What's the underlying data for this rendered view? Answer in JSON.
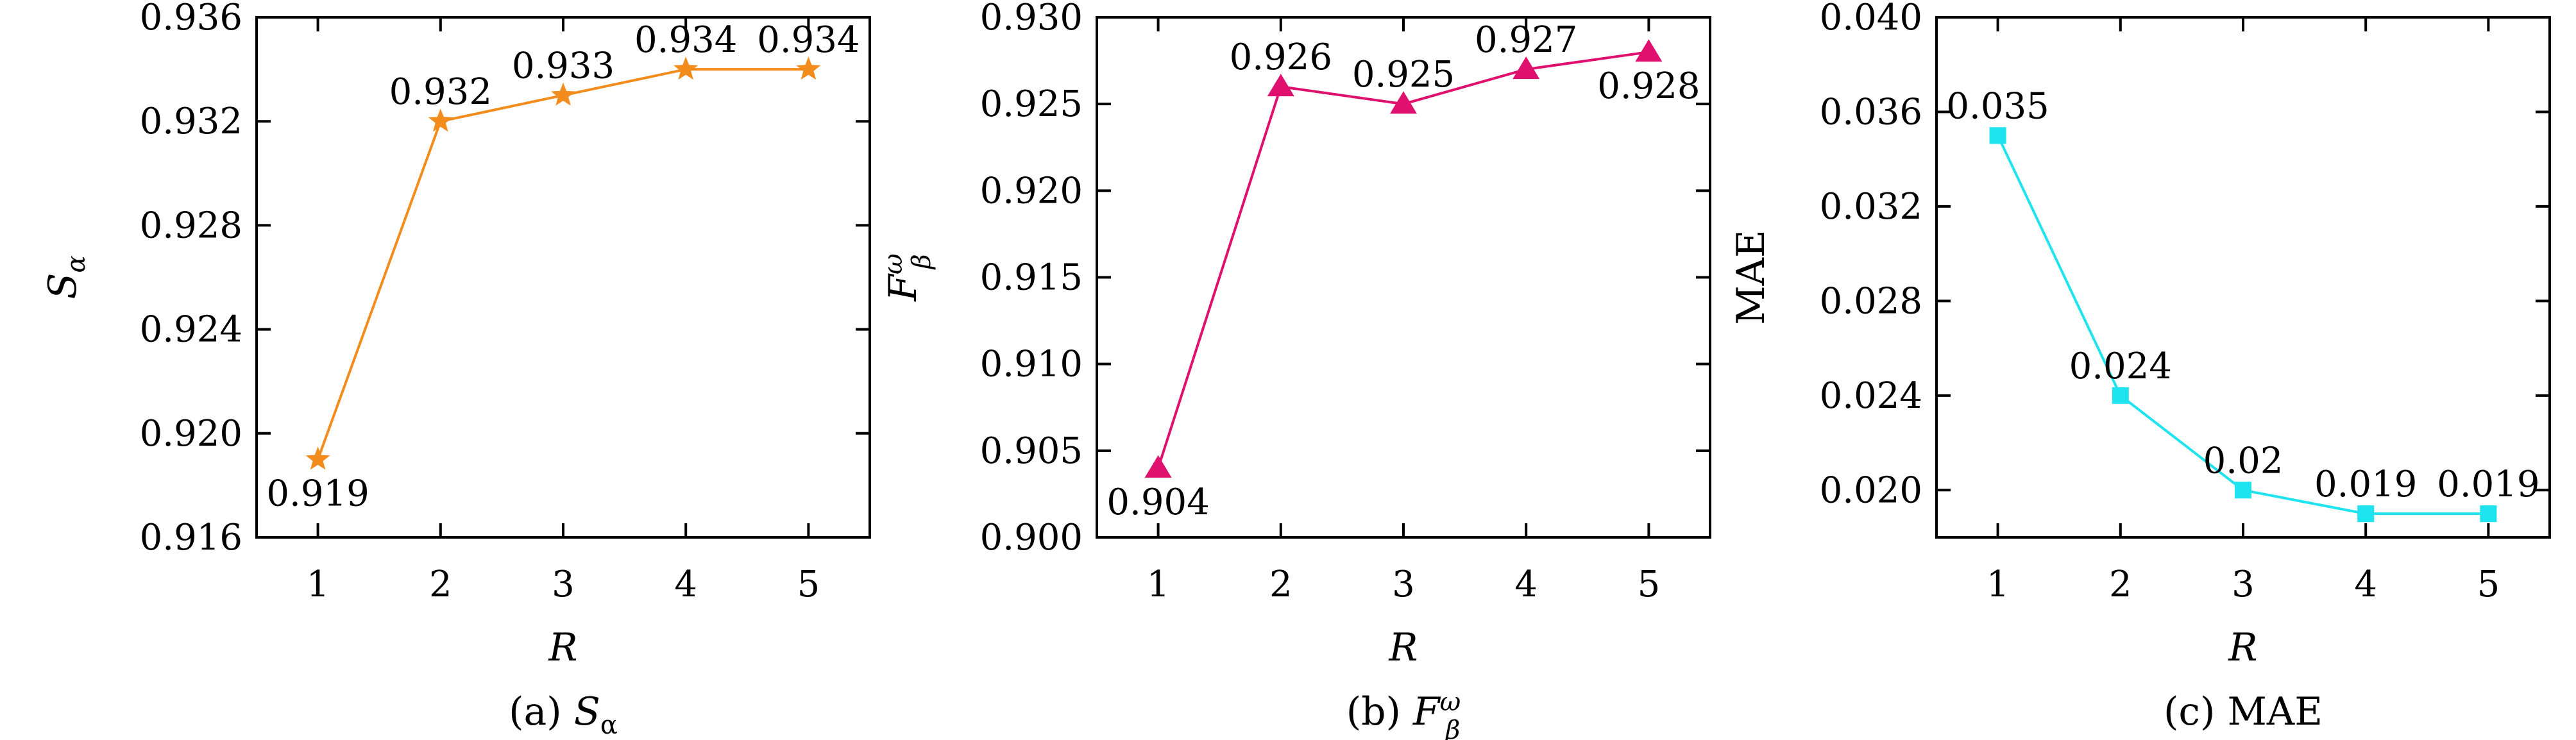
{
  "chart_data": [
    {
      "type": "line",
      "panel": "a",
      "caption": "(a) Sα",
      "caption_parts": {
        "prefix": "(a) ",
        "symbol": "S",
        "sub": "α",
        "sup": ""
      },
      "xlabel": "R",
      "ylabel": "Sα",
      "ylabel_parts": {
        "symbol": "S",
        "sub": "α",
        "sup": ""
      },
      "x": [
        1,
        2,
        3,
        4,
        5
      ],
      "series": [
        {
          "values": [
            0.919,
            0.932,
            0.933,
            0.934,
            0.934
          ],
          "marker": "star",
          "color": "#f28c1c"
        }
      ],
      "data_labels": [
        "0.919",
        "0.932",
        "0.933",
        "0.934",
        "0.934"
      ],
      "data_label_positions": [
        "below",
        "above",
        "above",
        "above",
        "above"
      ],
      "xlim": [
        0.5,
        5.5
      ],
      "ylim": [
        0.916,
        0.936
      ],
      "yticks": [
        0.916,
        0.92,
        0.924,
        0.928,
        0.932,
        0.936
      ],
      "ytick_labels": [
        "0.916",
        "0.920",
        "0.924",
        "0.928",
        "0.932",
        "0.936"
      ],
      "xtick_labels": [
        "1",
        "2",
        "3",
        "4",
        "5"
      ],
      "grid": false
    },
    {
      "type": "line",
      "panel": "b",
      "caption": "(b) Fβω",
      "caption_parts": {
        "prefix": "(b) ",
        "symbol": "F",
        "sub": "β",
        "sup": "ω"
      },
      "xlabel": "R",
      "ylabel": "Fβω",
      "ylabel_parts": {
        "symbol": "F",
        "sub": "β",
        "sup": "ω"
      },
      "x": [
        1,
        2,
        3,
        4,
        5
      ],
      "series": [
        {
          "values": [
            0.904,
            0.926,
            0.925,
            0.927,
            0.928
          ],
          "marker": "triangle",
          "color": "#e0106e"
        }
      ],
      "data_labels": [
        "0.904",
        "0.926",
        "0.925",
        "0.927",
        "0.928"
      ],
      "data_label_positions": [
        "below",
        "above",
        "above",
        "above",
        "below"
      ],
      "xlim": [
        0.5,
        5.5
      ],
      "ylim": [
        0.9,
        0.93
      ],
      "yticks": [
        0.9,
        0.905,
        0.91,
        0.915,
        0.92,
        0.925,
        0.93
      ],
      "ytick_labels": [
        "0.900",
        "0.905",
        "0.910",
        "0.915",
        "0.920",
        "0.925",
        "0.930"
      ],
      "xtick_labels": [
        "1",
        "2",
        "3",
        "4",
        "5"
      ],
      "grid": false
    },
    {
      "type": "line",
      "panel": "c",
      "caption": "(c) MAE",
      "caption_parts": {
        "prefix": "(c) ",
        "symbol": "MAE",
        "sub": "",
        "sup": ""
      },
      "xlabel": "R",
      "ylabel": "MAE",
      "ylabel_parts": {
        "symbol": "MAE",
        "sub": "",
        "sup": ""
      },
      "x": [
        1,
        2,
        3,
        4,
        5
      ],
      "series": [
        {
          "values": [
            0.035,
            0.024,
            0.02,
            0.019,
            0.019
          ],
          "marker": "square",
          "color": "#1fe3ee"
        }
      ],
      "data_labels": [
        "0.035",
        "0.024",
        "0.02",
        "0.019",
        "0.019"
      ],
      "data_label_positions": [
        "above",
        "above",
        "above",
        "above",
        "above"
      ],
      "xlim": [
        0.5,
        5.5
      ],
      "ylim": [
        0.018,
        0.04
      ],
      "yticks": [
        0.02,
        0.024,
        0.028,
        0.032,
        0.036,
        0.04
      ],
      "ytick_labels": [
        "0.020",
        "0.024",
        "0.028",
        "0.032",
        "0.036",
        "0.040"
      ],
      "xtick_labels": [
        "1",
        "2",
        "3",
        "4",
        "5"
      ],
      "grid": false
    }
  ]
}
